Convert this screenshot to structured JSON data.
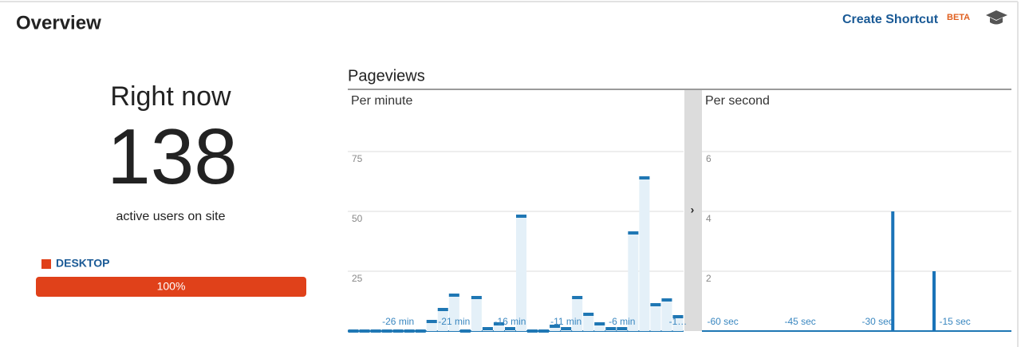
{
  "header": {
    "title": "Overview",
    "shortcut": "Create Shortcut",
    "badge": "BETA"
  },
  "right_now": {
    "title": "Right now",
    "active_users": 138,
    "caption": "active users on site",
    "segments": [
      {
        "name": "DESKTOP",
        "color": "#e0411a",
        "value": 100,
        "value_label": "100%"
      }
    ]
  },
  "pageviews": {
    "title": "Pageviews",
    "chart_data": [
      {
        "type": "bar",
        "title": "Per minute",
        "categories": [
          null,
          null,
          null,
          null,
          "-26 min",
          null,
          null,
          null,
          null,
          "-21 min",
          null,
          null,
          null,
          null,
          "-16 min",
          null,
          null,
          null,
          null,
          "-11 min",
          null,
          null,
          null,
          null,
          "-6 min",
          null,
          null,
          null,
          null,
          "-1…"
        ],
        "values": [
          0,
          0,
          0,
          0,
          0,
          0,
          0,
          4,
          9,
          15,
          0,
          14,
          1,
          3,
          1,
          48,
          0,
          0,
          2,
          1,
          14,
          7,
          3,
          1,
          1,
          41,
          64,
          11,
          13,
          6
        ],
        "color": "#1f77b4",
        "ylim": [
          0,
          100
        ],
        "yticks": [
          25,
          50,
          75
        ],
        "grid": true
      },
      {
        "type": "bar",
        "title": "Per second",
        "x": [
          -24,
          -16
        ],
        "values": [
          4,
          2
        ],
        "color": "#1a73b8",
        "xlim": [
          -61,
          -1
        ],
        "xticks": [
          {
            "value": -60,
            "label": "-60 sec"
          },
          {
            "value": -45,
            "label": "-45 sec"
          },
          {
            "value": -30,
            "label": "-30 sec"
          },
          {
            "value": -15,
            "label": "-15 sec"
          }
        ],
        "ylim": [
          0,
          8
        ],
        "yticks": [
          2,
          4,
          6
        ],
        "grid": true
      }
    ]
  }
}
